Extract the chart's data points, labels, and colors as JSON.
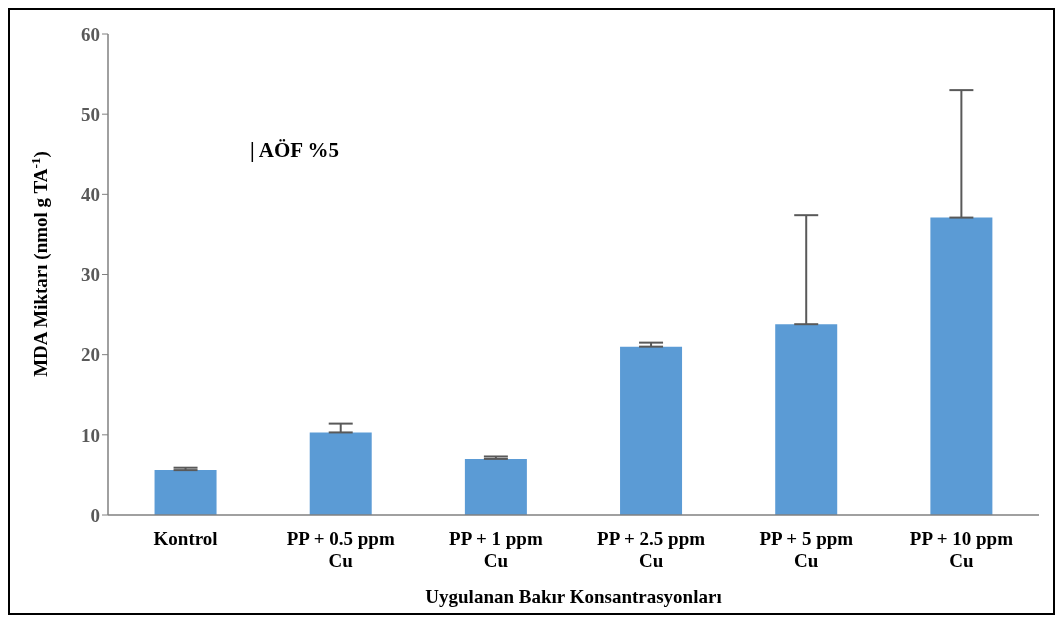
{
  "chart_data": {
    "type": "bar",
    "xlabel": "Uygulanan Bakır Konsantrasyonları",
    "ylabel": "MDA Miktarı (nmol g TA$^{-1}$)",
    "categories": [
      "Kontrol",
      "PP + 0.5 ppm Cu",
      "PP + 1 ppm Cu",
      "PP + 2.5 ppm Cu",
      "PP + 5 ppm Cu",
      "PP + 10 ppm Cu"
    ],
    "values": [
      5.6,
      10.3,
      7.0,
      21.0,
      23.8,
      37.1
    ],
    "errors": [
      [
        5.6,
        5.9
      ],
      [
        10.3,
        11.4
      ],
      [
        7.0,
        7.3
      ],
      [
        21.0,
        21.5
      ],
      [
        23.8,
        37.4
      ],
      [
        37.1,
        53.0
      ]
    ],
    "color": "#5b9bd5",
    "ylim": [
      0,
      60
    ],
    "yticks": [
      0,
      10,
      20,
      30,
      40,
      50,
      60
    ],
    "grid": false,
    "legend": false,
    "annotations": [
      "| AÖF %5"
    ]
  }
}
